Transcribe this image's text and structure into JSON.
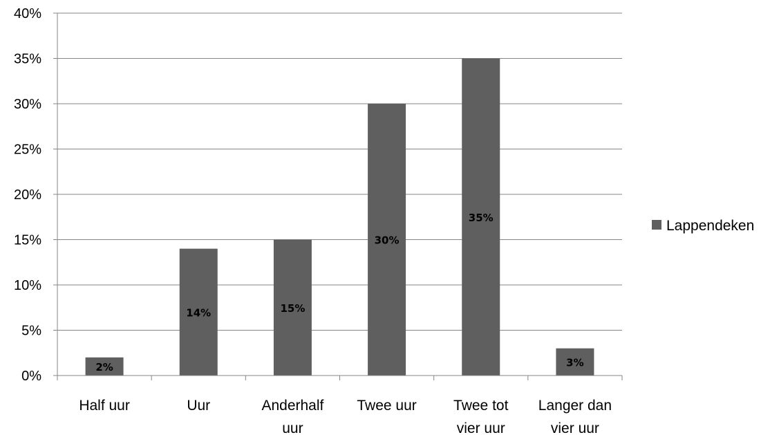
{
  "chart_data": {
    "type": "bar",
    "categories": [
      [
        "Half uur"
      ],
      [
        "Uur"
      ],
      [
        "Anderhalf",
        "uur"
      ],
      [
        "Twee uur"
      ],
      [
        "Twee tot",
        "vier uur"
      ],
      [
        "Langer dan",
        "vier uur"
      ]
    ],
    "series": [
      {
        "name": "Lappendeken",
        "values": [
          0.02,
          0.14,
          0.15,
          0.3,
          0.35,
          0.03
        ],
        "labels": [
          "2%",
          "14%",
          "15%",
          "30%",
          "35%",
          "3%"
        ],
        "color": "#5f5f5f"
      }
    ],
    "ylim": [
      0,
      0.4
    ],
    "yticks": [
      0,
      0.05,
      0.1,
      0.15,
      0.2,
      0.25,
      0.3,
      0.35,
      0.4
    ],
    "ytick_labels": [
      "0%",
      "5%",
      "10%",
      "15%",
      "20%",
      "25%",
      "30%",
      "35%",
      "40%"
    ],
    "grid": true,
    "gridline_color": "#868686",
    "axis_color": "#868686",
    "legend_position": "right"
  }
}
